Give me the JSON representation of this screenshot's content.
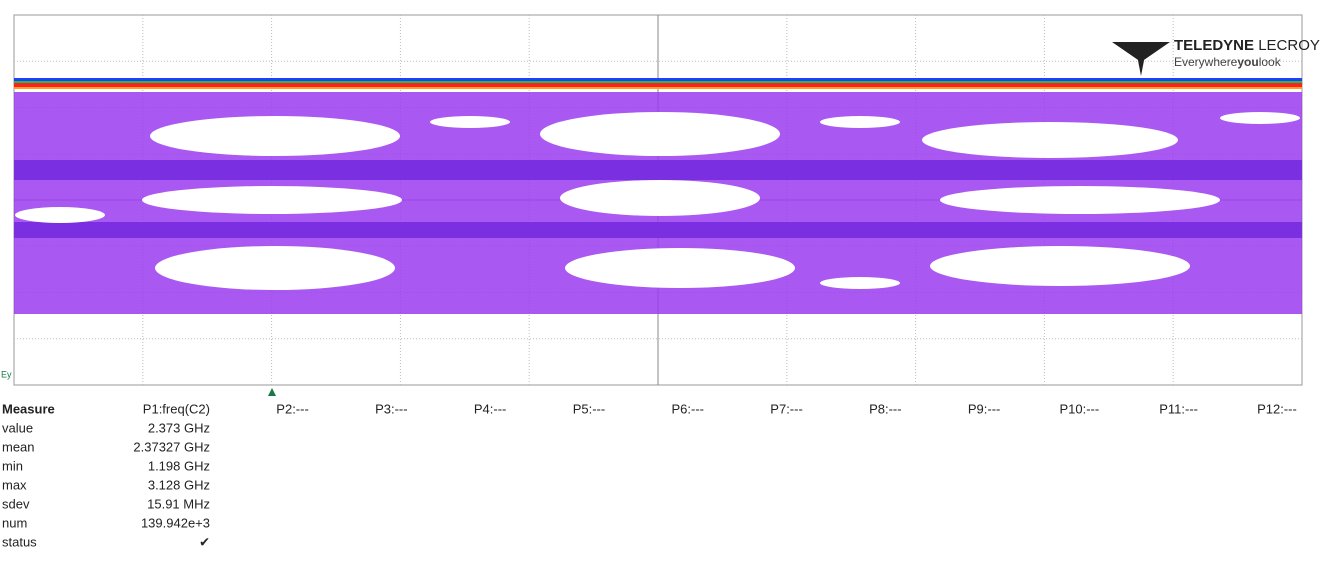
{
  "logo": {
    "brand_bold": "TELEDYNE",
    "brand_light": "LECROY",
    "tagline_a": "Everywhere",
    "tagline_b": "you",
    "tagline_c": "look"
  },
  "trace_label": "Ey",
  "measure": {
    "headers": [
      "Measure",
      "P1:freq(C2)",
      "P2:---",
      "P3:---",
      "P4:---",
      "P5:---",
      "P6:---",
      "P7:---",
      "P8:---",
      "P9:---",
      "P10:---",
      "P11:---",
      "P12:---"
    ],
    "rows": [
      [
        "value",
        "2.373 GHz"
      ],
      [
        "mean",
        "2.37327 GHz"
      ],
      [
        "min",
        "1.198 GHz"
      ],
      [
        "max",
        "3.128 GHz"
      ],
      [
        "sdev",
        "15.91 MHz"
      ],
      [
        "num",
        "139.942e+3"
      ],
      [
        "status",
        "✔"
      ]
    ]
  }
}
